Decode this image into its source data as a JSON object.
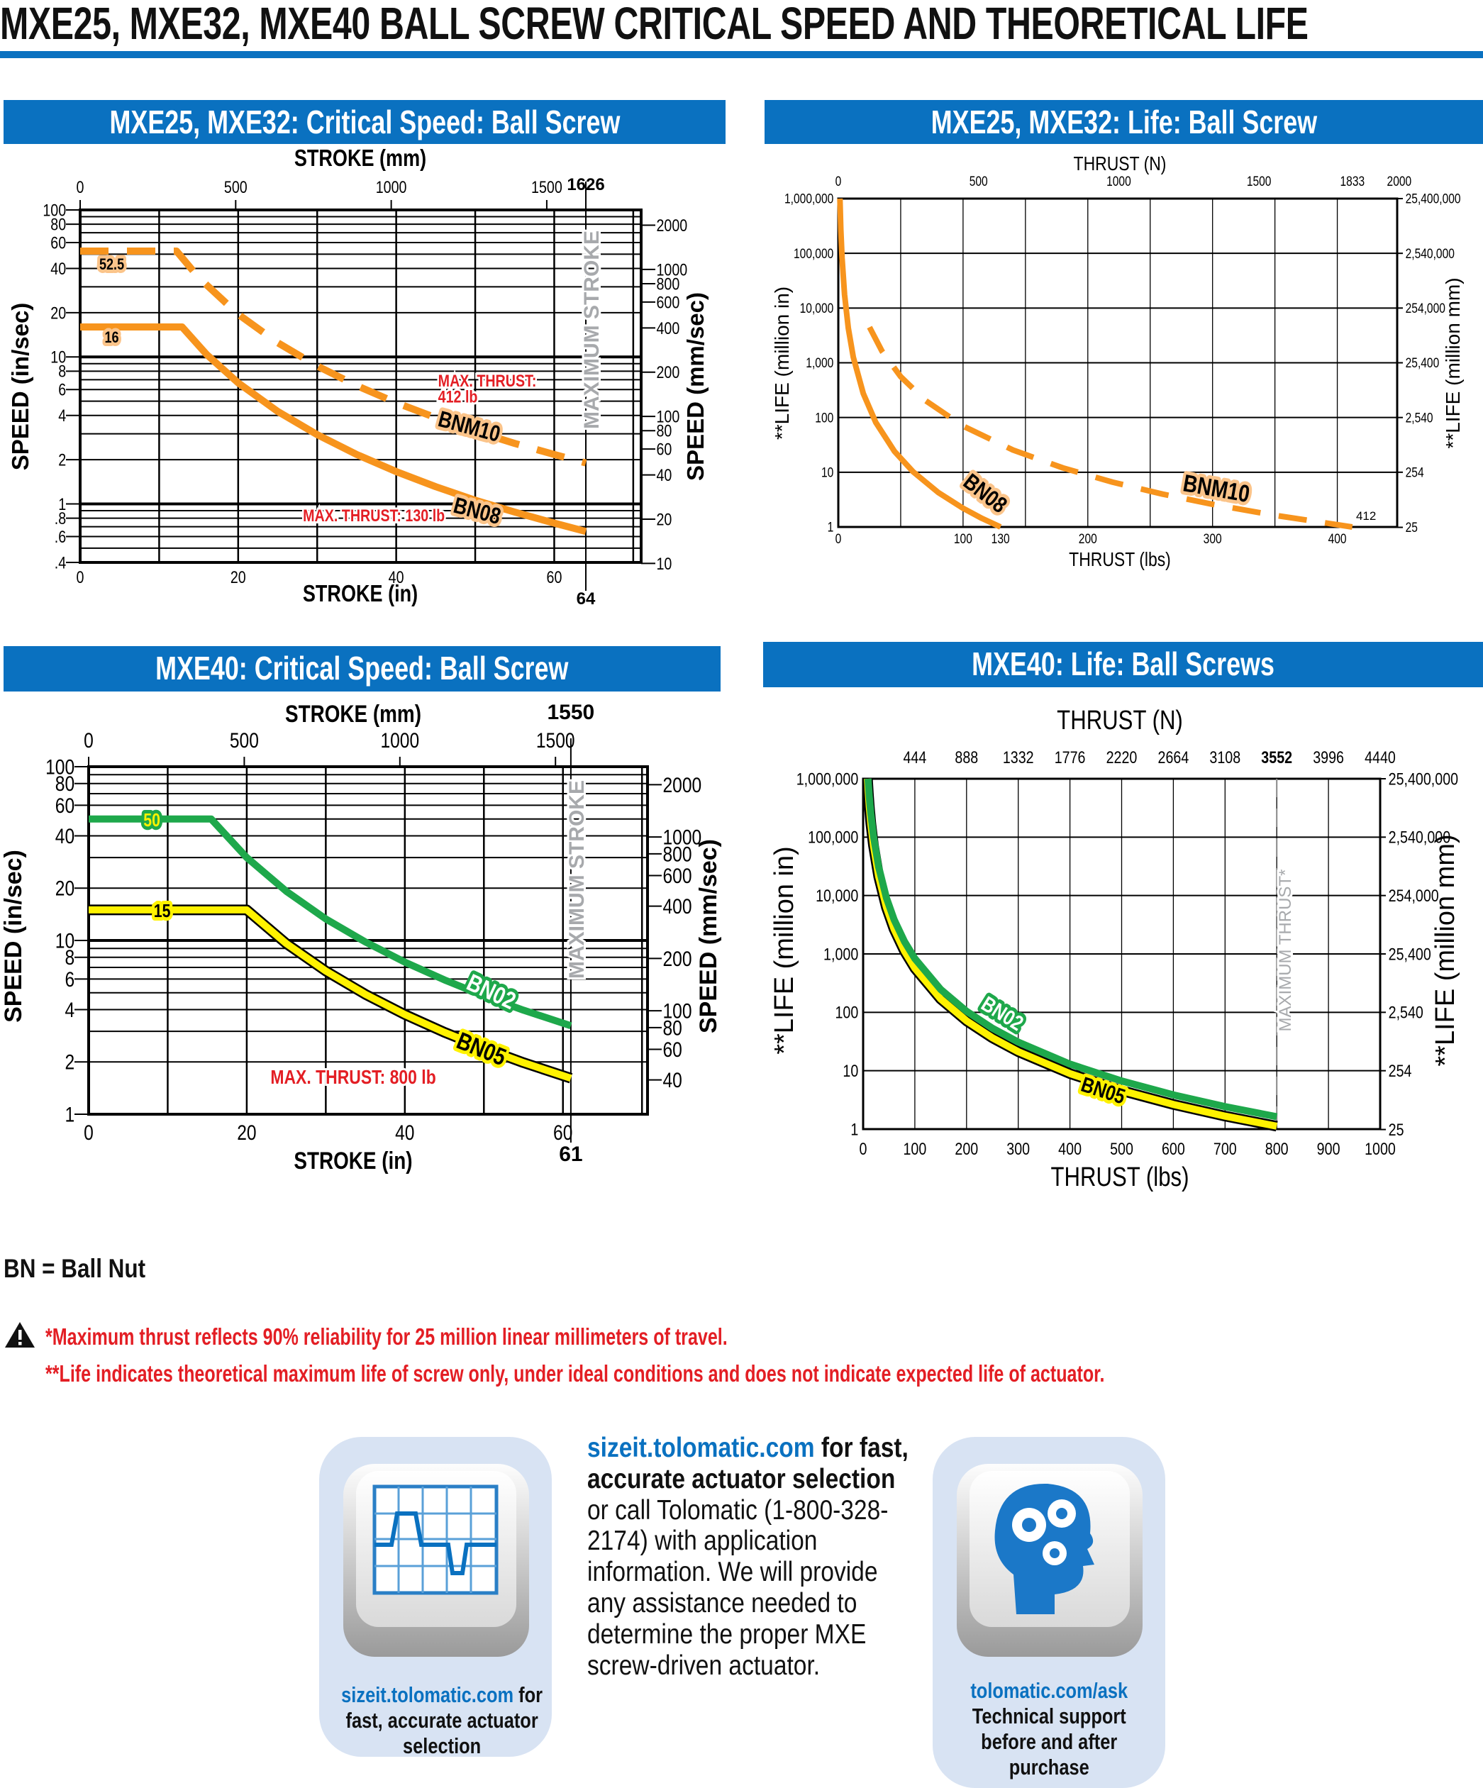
{
  "page_title": "MXE25, MXE32, MXE40 BALL SCREW CRITICAL SPEED AND THEORETICAL LIFE",
  "colors": {
    "brand_blue": "#0a71c0",
    "orange": "#f7941d",
    "green": "#1ea84b",
    "yellow": "#fff200",
    "red": "#e31e24",
    "gray": "#a7a9ac"
  },
  "panels": [
    {
      "header": "MXE25, MXE32: Critical Speed: Ball Screw"
    },
    {
      "header": "MXE25, MXE32: Life: Ball Screw"
    },
    {
      "header": "MXE40: Critical Speed: Ball Screw"
    },
    {
      "header": "MXE40: Life:  Ball Screws"
    }
  ],
  "chart_data": [
    {
      "id": "tl",
      "type": "line",
      "title": "MXE25, MXE32: Critical Speed: Ball Screw",
      "xlabel": "STROKE (in)",
      "x2label": "STROKE (mm)",
      "ylabel": "SPEED (in/sec)",
      "y2label": "SPEED (mm/sec)",
      "xlim": [
        0,
        71
      ],
      "ylim": [
        0.4,
        100
      ],
      "yscale": "log",
      "x2_factor": 25.4,
      "y2_factor": 25.4,
      "x_ticks": [
        "0",
        "20",
        "40",
        "60"
      ],
      "x2_ticks": [
        "0",
        "500",
        "1000",
        "1500"
      ],
      "y_ticks": [
        "100",
        "80",
        "60",
        "40",
        "20",
        "10",
        "8",
        "6",
        "4",
        "2",
        "1",
        ".8",
        ".6",
        ".4"
      ],
      "y2_ticks": [
        "2000",
        "1000",
        "800",
        "600",
        "400",
        "200",
        "100",
        "80",
        "60",
        "40",
        "20",
        "10"
      ],
      "max_marker": {
        "value": 64,
        "label": "64",
        "label2": "1626",
        "text": "MAXIMUM STROKE"
      },
      "series": [
        {
          "name": "BNM10",
          "color": "#f7941d",
          "style": "dashed",
          "plateau_label": "52.5",
          "points": [
            [
              0,
              52.5
            ],
            [
              12.2,
              52.5
            ],
            [
              15,
              34.7
            ],
            [
              20,
              19.5
            ],
            [
              25,
              12.5
            ],
            [
              30,
              8.68
            ],
            [
              35,
              6.38
            ],
            [
              40,
              4.88
            ],
            [
              45,
              3.86
            ],
            [
              50,
              3.13
            ],
            [
              55,
              2.58
            ],
            [
              60,
              2.17
            ],
            [
              64,
              1.9
            ]
          ]
        },
        {
          "name": "BN08",
          "color": "#f7941d",
          "style": "solid",
          "plateau_label": "16",
          "points": [
            [
              0,
              16
            ],
            [
              12.9,
              16
            ],
            [
              16,
              10.4
            ],
            [
              20,
              6.66
            ],
            [
              25,
              4.26
            ],
            [
              30,
              2.96
            ],
            [
              35,
              2.17
            ],
            [
              40,
              1.66
            ],
            [
              45,
              1.31
            ],
            [
              50,
              1.06
            ],
            [
              55,
              0.88
            ],
            [
              60,
              0.74
            ],
            [
              64,
              0.65
            ]
          ]
        }
      ],
      "annotations": [
        "MAX. THRUST:",
        "412 lb",
        "MAX. THRUST: 130 lb"
      ]
    },
    {
      "id": "tr",
      "type": "line",
      "title": "MXE25, MXE32: Life: Ball Screw",
      "xlabel": "THRUST (lbs)",
      "x2label": "THRUST (N)",
      "ylabel": "**LIFE (million in)",
      "y2label": "**LIFE (million mm)",
      "xlim": [
        0,
        448
      ],
      "ylim": [
        1,
        1000000
      ],
      "yscale": "log",
      "x2_factor": 4.448,
      "y2_factor": 25.4,
      "x_ticks": [
        "0",
        "100",
        "130",
        "200",
        "300",
        "400"
      ],
      "x2_ticks": [
        "0",
        "500",
        "1000",
        "1500",
        "1833",
        "2000"
      ],
      "y_ticks": [
        "1,000,000",
        "100,000",
        "10,000",
        "1,000",
        "100",
        "10",
        "1"
      ],
      "y2_ticks": [
        "25,400,000",
        "2,540,000",
        "254,000",
        "25,400",
        "2,540",
        "254",
        "25"
      ],
      "series": [
        {
          "name": "BN08",
          "color": "#f7941d",
          "style": "solid",
          "points": [
            [
              1.3,
              1000000
            ],
            [
              2,
              274625
            ],
            [
              3,
              81370
            ],
            [
              5,
              17576
            ],
            [
              8,
              4291
            ],
            [
              12,
              1271
            ],
            [
              20,
              274.6
            ],
            [
              30,
              81.4
            ],
            [
              45,
              24.1
            ],
            [
              60,
              10.2
            ],
            [
              80,
              4.29
            ],
            [
              100,
              2.2
            ],
            [
              115,
              1.44
            ],
            [
              130,
              1
            ]
          ]
        },
        {
          "name": "BNM10",
          "color": "#f7941d",
          "style": "dashed",
          "points": [
            [
              25,
              4472
            ],
            [
              35,
              1631
            ],
            [
              50,
              559
            ],
            [
              70,
              204
            ],
            [
              100,
              69.9
            ],
            [
              140,
              25.5
            ],
            [
              180,
              12
            ],
            [
              220,
              6.57
            ],
            [
              260,
              3.98
            ],
            [
              300,
              2.59
            ],
            [
              350,
              1.63
            ],
            [
              412,
              1
            ]
          ]
        }
      ],
      "annotations": [
        "412"
      ]
    },
    {
      "id": "bl",
      "type": "line",
      "title": "MXE40: Critical Speed: Ball Screw",
      "xlabel": "STROKE (in)",
      "x2label": "STROKE (mm)",
      "ylabel": "SPEED (in/sec)",
      "y2label": "SPEED (mm/sec)",
      "xlim": [
        0,
        70.7
      ],
      "ylim": [
        1,
        100
      ],
      "yscale": "log",
      "x2_factor": 25.4,
      "y2_factor": 25.4,
      "x_ticks": [
        "0",
        "20",
        "40",
        "60"
      ],
      "x2_ticks": [
        "0",
        "500",
        "1000",
        "1500"
      ],
      "y_ticks": [
        "100",
        "80",
        "60",
        "40",
        "20",
        "10",
        "8",
        "6",
        "4",
        "2",
        "1"
      ],
      "y2_ticks": [
        "2000",
        "1000",
        "800",
        "600",
        "400",
        "200",
        "100",
        "80",
        "60",
        "40"
      ],
      "max_marker": {
        "value": 61,
        "label": "61",
        "label2": "1550",
        "text": "MAXIMUM STROKE"
      },
      "series": [
        {
          "name": "BN02",
          "color": "#1ea84b",
          "style": "solid",
          "plateau_label": "50",
          "points": [
            [
              0,
              50
            ],
            [
              15.5,
              50
            ],
            [
              20,
              30
            ],
            [
              25,
              19.2
            ],
            [
              30,
              13.3
            ],
            [
              35,
              9.8
            ],
            [
              40,
              7.5
            ],
            [
              45,
              5.93
            ],
            [
              50,
              4.8
            ],
            [
              55,
              3.97
            ],
            [
              61,
              3.23
            ]
          ]
        },
        {
          "name": "BN05",
          "color": "#fff200",
          "style": "outlined",
          "plateau_label": "15",
          "points": [
            [
              0,
              15
            ],
            [
              20,
              15
            ],
            [
              25,
              9.6
            ],
            [
              30,
              6.67
            ],
            [
              35,
              4.9
            ],
            [
              40,
              3.75
            ],
            [
              45,
              2.96
            ],
            [
              50,
              2.4
            ],
            [
              55,
              1.98
            ],
            [
              61,
              1.61
            ]
          ]
        }
      ],
      "annotations": [
        "MAX. THRUST: 800 lb"
      ]
    },
    {
      "id": "br",
      "type": "line",
      "title": "MXE40: Life:  Ball Screws",
      "xlabel": "THRUST (lbs)",
      "x2label": "THRUST (N)",
      "ylabel": "**LIFE (million in)",
      "y2label": "**LIFE (million mm)",
      "xlim": [
        0,
        1000
      ],
      "ylim": [
        1,
        1000000
      ],
      "yscale": "log",
      "x2_factor": 4.44,
      "y2_factor": 25.4,
      "x_ticks": [
        "0",
        "100",
        "200",
        "300",
        "400",
        "500",
        "600",
        "700",
        "800",
        "900",
        "1000"
      ],
      "x2_ticks": [
        "444",
        "888",
        "1332",
        "1776",
        "2220",
        "2664",
        "3108",
        "3552",
        "3996",
        "4440"
      ],
      "y_ticks": [
        "1,000,000",
        "100,000",
        "10,000",
        "1,000",
        "100",
        "10",
        "1"
      ],
      "y2_ticks": [
        "25,400,000",
        "2,540,000",
        "254,000",
        "25,400",
        "2,540",
        "254",
        "25"
      ],
      "max_marker": {
        "value": 800,
        "text": "MAXIMUM THRUST*"
      },
      "series": [
        {
          "name": "BN05",
          "color": "#fff200",
          "style": "outlined",
          "points": [
            [
              8.3,
              1000000
            ],
            [
              10,
              571787
            ],
            [
              12,
              330900
            ],
            [
              15,
              169390
            ],
            [
              20,
              71473
            ],
            [
              30,
              21178
            ],
            [
              45,
              6275
            ],
            [
              60,
              2647
            ],
            [
              80,
              1117
            ],
            [
              100,
              571.8
            ],
            [
              150,
              169.4
            ],
            [
              200,
              71.5
            ],
            [
              250,
              36.6
            ],
            [
              300,
              21.2
            ],
            [
              400,
              8.93
            ],
            [
              500,
              4.57
            ],
            [
              600,
              2.65
            ],
            [
              700,
              1.67
            ],
            [
              800,
              1.12
            ]
          ]
        },
        {
          "name": "BN02",
          "color": "#1ea84b",
          "style": "solid",
          "points": [
            [
              9.5,
              1000000
            ],
            [
              12,
              491300
            ],
            [
              15,
              250000
            ],
            [
              20,
              104400
            ],
            [
              30,
              30900
            ],
            [
              45,
              9160
            ],
            [
              60,
              3865
            ],
            [
              80,
              1630
            ],
            [
              100,
              834.7
            ],
            [
              150,
              247.3
            ],
            [
              200,
              104.4
            ],
            [
              250,
              53.4
            ],
            [
              300,
              30.9
            ],
            [
              400,
              13.0
            ],
            [
              500,
              6.68
            ],
            [
              600,
              3.86
            ],
            [
              700,
              2.43
            ],
            [
              800,
              1.63
            ]
          ]
        }
      ],
      "annotations": []
    }
  ],
  "legend_note": "BN = Ball Nut",
  "notes": [
    "*Maximum thrust reflects 90% reliability for 25 million linear millimeters of travel.",
    "**Life indicates theoretical maximum life of screw only, under ideal conditions and does not indicate expected life of actuator."
  ],
  "promo": {
    "left_card": {
      "link": "sizeit.tolomatic.com",
      "link_suffix": " for",
      "line2": "fast, accurate actuator",
      "line3": "selection"
    },
    "middle": {
      "link": "sizeit.tolomatic.com",
      "bold1": " for fast, accurate actuator selection",
      "rest": " or call Tolomatic (1-800-328-2174) with application information. We will provide any assistance needed to determine the proper MXE screw-driven actuator."
    },
    "right_card": {
      "link": "tolomatic.com/ask",
      "line2": "Technical support",
      "line3": "before and after",
      "line4": "purchase"
    }
  }
}
